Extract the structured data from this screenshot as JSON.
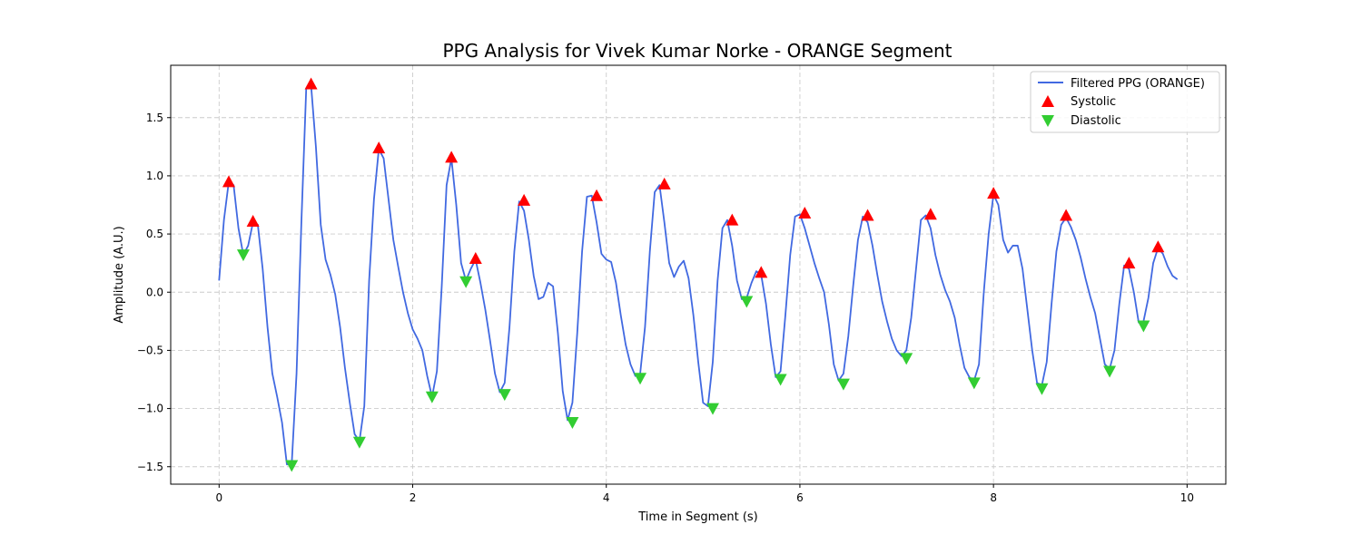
{
  "chart_data": {
    "type": "line",
    "title": "PPG Analysis for Vivek Kumar Norke - ORANGE Segment",
    "xlabel": "Time in Segment (s)",
    "ylabel": "Amplitude (A.U.)",
    "xlim": [
      -0.5,
      10.4
    ],
    "ylim": [
      -1.65,
      1.95
    ],
    "xticks": [
      0,
      2,
      4,
      6,
      8,
      10
    ],
    "xtick_labels": [
      "0",
      "2",
      "4",
      "6",
      "8",
      "10"
    ],
    "yticks": [
      -1.5,
      -1.0,
      -0.5,
      0.0,
      0.5,
      1.0,
      1.5
    ],
    "ytick_labels": [
      "−1.5",
      "−1.0",
      "−0.5",
      "0.0",
      "0.5",
      "1.0",
      "1.5"
    ],
    "grid": true,
    "legend_position": "top-right",
    "colors": {
      "line": "#4169e1",
      "systolic": "#ff0000",
      "diastolic": "#32cd32"
    },
    "series": [
      {
        "name": "Filtered PPG (ORANGE)",
        "marker": "line",
        "x": [
          0,
          0.05,
          0.1,
          0.15,
          0.2,
          0.25,
          0.3,
          0.35,
          0.4,
          0.45,
          0.5,
          0.55,
          0.6,
          0.65,
          0.7,
          0.75,
          0.8,
          0.85,
          0.9,
          0.95,
          1.0,
          1.05,
          1.1,
          1.15,
          1.2,
          1.25,
          1.3,
          1.35,
          1.4,
          1.45,
          1.5,
          1.55,
          1.6,
          1.65,
          1.7,
          1.75,
          1.8,
          1.85,
          1.9,
          1.95,
          2.0,
          2.05,
          2.1,
          2.15,
          2.2,
          2.25,
          2.3,
          2.35,
          2.4,
          2.45,
          2.5,
          2.55,
          2.6,
          2.65,
          2.7,
          2.75,
          2.8,
          2.85,
          2.9,
          2.95,
          3.0,
          3.05,
          3.1,
          3.15,
          3.2,
          3.25,
          3.3,
          3.35,
          3.4,
          3.45,
          3.5,
          3.55,
          3.6,
          3.65,
          3.7,
          3.75,
          3.8,
          3.85,
          3.9,
          3.95,
          4.0,
          4.05,
          4.1,
          4.15,
          4.2,
          4.25,
          4.3,
          4.35,
          4.4,
          4.45,
          4.5,
          4.55,
          4.6,
          4.65,
          4.7,
          4.75,
          4.8,
          4.85,
          4.9,
          4.95,
          5.0,
          5.05,
          5.1,
          5.15,
          5.2,
          5.25,
          5.3,
          5.35,
          5.4,
          5.45,
          5.5,
          5.55,
          5.6,
          5.65,
          5.7,
          5.75,
          5.8,
          5.85,
          5.9,
          5.95,
          6.0,
          6.05,
          6.1,
          6.15,
          6.2,
          6.25,
          6.3,
          6.35,
          6.4,
          6.45,
          6.5,
          6.55,
          6.6,
          6.65,
          6.7,
          6.75,
          6.8,
          6.85,
          6.9,
          6.95,
          7.0,
          7.05,
          7.1,
          7.15,
          7.2,
          7.25,
          7.3,
          7.35,
          7.4,
          7.45,
          7.5,
          7.55,
          7.6,
          7.65,
          7.7,
          7.75,
          7.8,
          7.85,
          7.9,
          7.95,
          8.0,
          8.05,
          8.1,
          8.15,
          8.2,
          8.25,
          8.3,
          8.35,
          8.4,
          8.45,
          8.5,
          8.55,
          8.6,
          8.65,
          8.7,
          8.75,
          8.8,
          8.85,
          8.9,
          8.95,
          9.0,
          9.05,
          9.1,
          9.15,
          9.2,
          9.25,
          9.3,
          9.35,
          9.4,
          9.45,
          9.5,
          9.55,
          9.6,
          9.65,
          9.7,
          9.75,
          9.8,
          9.85,
          9.9
        ],
        "y": [
          0.1,
          0.62,
          0.95,
          0.92,
          0.55,
          0.32,
          0.4,
          0.6,
          0.58,
          0.2,
          -0.3,
          -0.7,
          -0.9,
          -1.12,
          -1.48,
          -1.48,
          -0.7,
          0.6,
          1.75,
          1.78,
          1.25,
          0.58,
          0.28,
          0.15,
          -0.02,
          -0.3,
          -0.65,
          -0.95,
          -1.22,
          -1.28,
          -0.98,
          0.1,
          0.8,
          1.23,
          1.15,
          0.8,
          0.45,
          0.22,
          0.0,
          -0.18,
          -0.32,
          -0.4,
          -0.5,
          -0.72,
          -0.9,
          -0.68,
          0.05,
          0.92,
          1.15,
          0.75,
          0.25,
          0.1,
          0.2,
          0.28,
          0.08,
          -0.15,
          -0.42,
          -0.7,
          -0.86,
          -0.78,
          -0.3,
          0.35,
          0.78,
          0.7,
          0.45,
          0.14,
          -0.06,
          -0.04,
          0.08,
          0.05,
          -0.35,
          -0.85,
          -1.1,
          -0.95,
          -0.35,
          0.35,
          0.82,
          0.83,
          0.6,
          0.33,
          0.28,
          0.26,
          0.08,
          -0.2,
          -0.45,
          -0.62,
          -0.72,
          -0.7,
          -0.3,
          0.35,
          0.86,
          0.92,
          0.6,
          0.25,
          0.13,
          0.22,
          0.27,
          0.12,
          -0.2,
          -0.6,
          -0.95,
          -0.98,
          -0.6,
          0.1,
          0.55,
          0.62,
          0.4,
          0.1,
          -0.06,
          -0.05,
          0.08,
          0.18,
          0.15,
          -0.1,
          -0.45,
          -0.73,
          -0.68,
          -0.2,
          0.32,
          0.65,
          0.67,
          0.55,
          0.4,
          0.25,
          0.12,
          0.0,
          -0.28,
          -0.62,
          -0.76,
          -0.7,
          -0.38,
          0.05,
          0.45,
          0.65,
          0.6,
          0.4,
          0.15,
          -0.08,
          -0.25,
          -0.4,
          -0.5,
          -0.55,
          -0.5,
          -0.22,
          0.2,
          0.62,
          0.66,
          0.55,
          0.32,
          0.15,
          0.02,
          -0.08,
          -0.22,
          -0.45,
          -0.65,
          -0.73,
          -0.76,
          -0.62,
          0.0,
          0.5,
          0.84,
          0.75,
          0.45,
          0.34,
          0.4,
          0.4,
          0.2,
          -0.15,
          -0.5,
          -0.78,
          -0.8,
          -0.6,
          -0.1,
          0.35,
          0.58,
          0.64,
          0.56,
          0.45,
          0.3,
          0.12,
          -0.04,
          -0.18,
          -0.4,
          -0.62,
          -0.66,
          -0.5,
          -0.1,
          0.23,
          0.2,
          0.0,
          -0.26,
          -0.25,
          -0.05,
          0.25,
          0.38,
          0.33,
          0.22,
          0.14,
          0.11
        ]
      },
      {
        "name": "Systolic",
        "marker": "triangle-up",
        "x": [
          0.1,
          0.35,
          0.95,
          1.65,
          2.4,
          2.65,
          3.15,
          3.9,
          4.6,
          5.3,
          5.6,
          6.05,
          6.7,
          7.35,
          8.0,
          8.75,
          9.4,
          9.7
        ],
        "y": [
          0.95,
          0.61,
          1.79,
          1.24,
          1.16,
          0.29,
          0.79,
          0.83,
          0.93,
          0.62,
          0.17,
          0.68,
          0.66,
          0.67,
          0.85,
          0.66,
          0.25,
          0.39
        ]
      },
      {
        "name": "Diastolic",
        "marker": "triangle-down",
        "x": [
          0.25,
          0.75,
          1.45,
          2.2,
          2.55,
          2.95,
          3.65,
          4.35,
          5.1,
          5.45,
          5.8,
          6.45,
          7.1,
          7.8,
          8.5,
          9.2,
          9.55
        ],
        "y": [
          0.32,
          -1.49,
          -1.29,
          -0.9,
          0.09,
          -0.88,
          -1.12,
          -0.74,
          -1.0,
          -0.08,
          -0.75,
          -0.79,
          -0.57,
          -0.78,
          -0.83,
          -0.68,
          -0.29
        ]
      }
    ]
  }
}
